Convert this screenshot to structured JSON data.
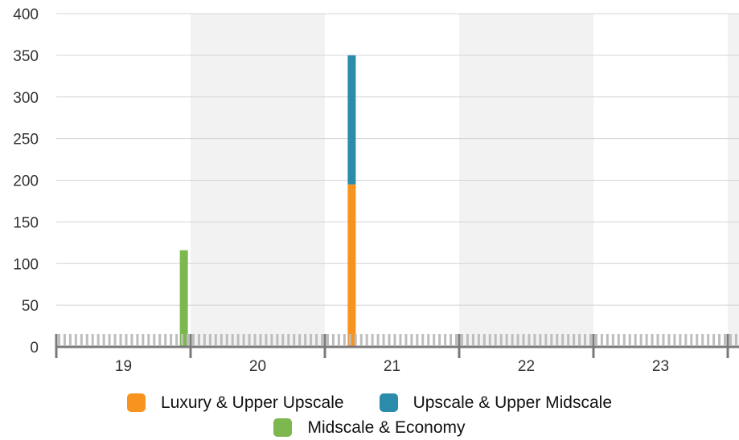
{
  "chart_data": {
    "type": "bar",
    "stacked": true,
    "categories": [
      "19",
      "20",
      "21",
      "22",
      "23"
    ],
    "ylim": [
      0,
      400
    ],
    "yticks": [
      0,
      50,
      100,
      150,
      200,
      250,
      300,
      350,
      400
    ],
    "grid": true,
    "legend_position": "bottom",
    "series": [
      {
        "name": "Luxury & Upper Upscale",
        "color": "#f7931e",
        "points": [
          {
            "x": 21.2,
            "y": 195
          }
        ]
      },
      {
        "name": "Upscale & Upper Midscale",
        "color": "#2a8bab",
        "points": [
          {
            "x": 21.2,
            "y": 155
          }
        ]
      },
      {
        "name": "Midscale & Economy",
        "color": "#7db84e",
        "points": [
          {
            "x": 19.95,
            "y": 116
          }
        ]
      }
    ]
  }
}
